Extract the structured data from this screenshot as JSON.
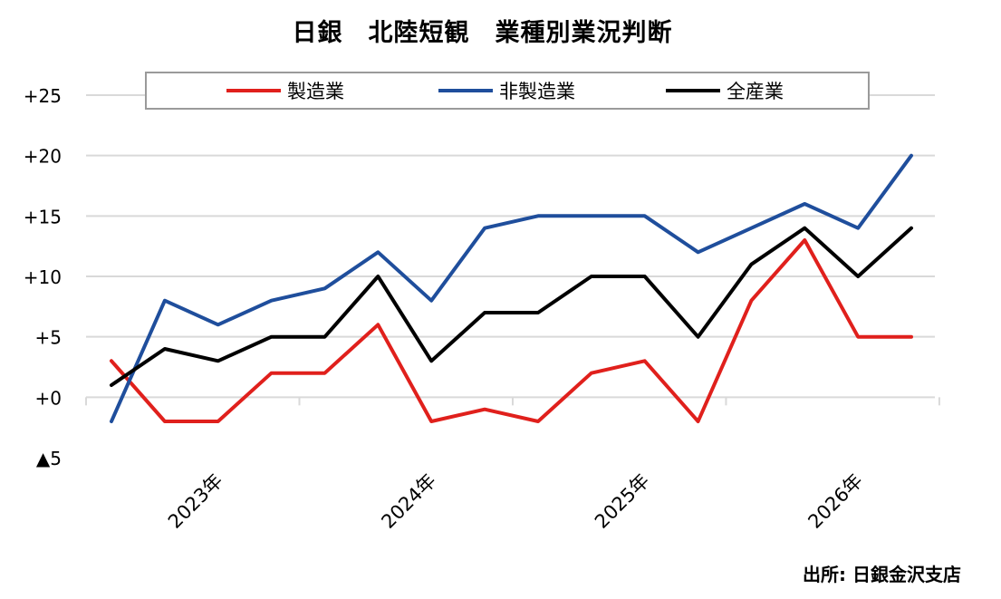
{
  "chart_data": {
    "type": "line",
    "title": "日銀　北陸短観　業種別業況判断",
    "xlabel": "",
    "ylabel": "",
    "ylim": [
      -5,
      25
    ],
    "y_ticks": [
      {
        "value": 25,
        "label": "+25"
      },
      {
        "value": 20,
        "label": "+20"
      },
      {
        "value": 15,
        "label": "+15"
      },
      {
        "value": 10,
        "label": "+10"
      },
      {
        "value": 5,
        "label": "+5"
      },
      {
        "value": 0,
        "label": "+0"
      },
      {
        "value": -5,
        "label": "▲5"
      }
    ],
    "grid": true,
    "legend_position": "top",
    "year_labels": [
      "2023年",
      "2024年",
      "2025年",
      "2026年"
    ],
    "series": [
      {
        "name": "製造業",
        "color": "#e0201c",
        "values": [
          3,
          -2,
          -2,
          2,
          2,
          6,
          -2,
          -1,
          -2,
          2,
          3,
          -2,
          8,
          13,
          5,
          5
        ]
      },
      {
        "name": "非製造業",
        "color": "#1f4e9c",
        "values": [
          -2,
          8,
          6,
          8,
          9,
          12,
          8,
          14,
          15,
          15,
          15,
          12,
          14,
          16,
          14,
          20
        ]
      },
      {
        "name": "全産業",
        "color": "#000000",
        "values": [
          1,
          4,
          3,
          5,
          5,
          10,
          3,
          7,
          7,
          10,
          10,
          5,
          11,
          14,
          10,
          14
        ]
      }
    ]
  },
  "source": "出所: 日銀金沢支店"
}
